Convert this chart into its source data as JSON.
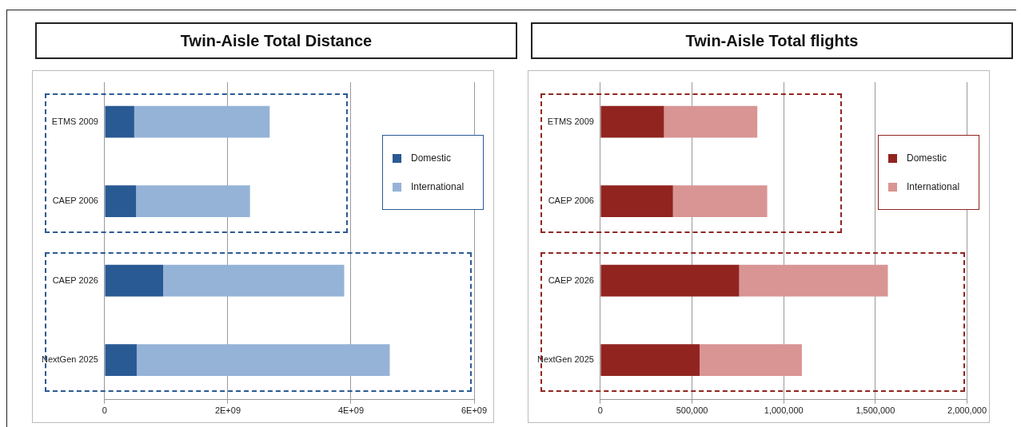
{
  "chart_data": [
    {
      "type": "bar",
      "orientation": "horizontal",
      "stacked": true,
      "title": "Twin-Aisle Total Distance",
      "categories": [
        "ETMS 2009",
        "CAEP 2006",
        "CAEP 2026",
        "NextGen 2025"
      ],
      "series": [
        {
          "name": "Domestic",
          "color": "#2a5a94",
          "values": [
            480000000,
            510000000,
            950000000,
            520000000
          ]
        },
        {
          "name": "International",
          "color": "#95b3d7",
          "values": [
            2200000000,
            1850000000,
            2940000000,
            4110000000
          ]
        }
      ],
      "xlim": [
        0,
        6000000000
      ],
      "xticks": [
        0,
        {
          "value": 2000000000,
          "label": "2E+09"
        },
        {
          "value": 4000000000,
          "label": "4E+09"
        },
        {
          "value": 6000000000,
          "label": "6E+09"
        }
      ],
      "grid": "x",
      "legend": "right"
    },
    {
      "type": "bar",
      "orientation": "horizontal",
      "stacked": true,
      "title": "Twin-Aisle Total flights",
      "categories": [
        "ETMS 2009",
        "CAEP 2006",
        "CAEP 2026",
        "NextGen 2025"
      ],
      "series": [
        {
          "name": "Domestic",
          "color": "#922420",
          "values": [
            347000,
            396000,
            757000,
            541000
          ]
        },
        {
          "name": "International",
          "color": "#d99594",
          "values": [
            509000,
            514000,
            811000,
            558000
          ]
        }
      ],
      "xlim": [
        0,
        2000000
      ],
      "xticks": [
        0,
        {
          "value": 500000,
          "label": "500,000"
        },
        {
          "value": 1000000,
          "label": "1,000,000"
        },
        {
          "value": 1500000,
          "label": "1,500,000"
        },
        {
          "value": 2000000,
          "label": "2,000,000"
        }
      ],
      "grid": "x",
      "legend": "right"
    }
  ]
}
